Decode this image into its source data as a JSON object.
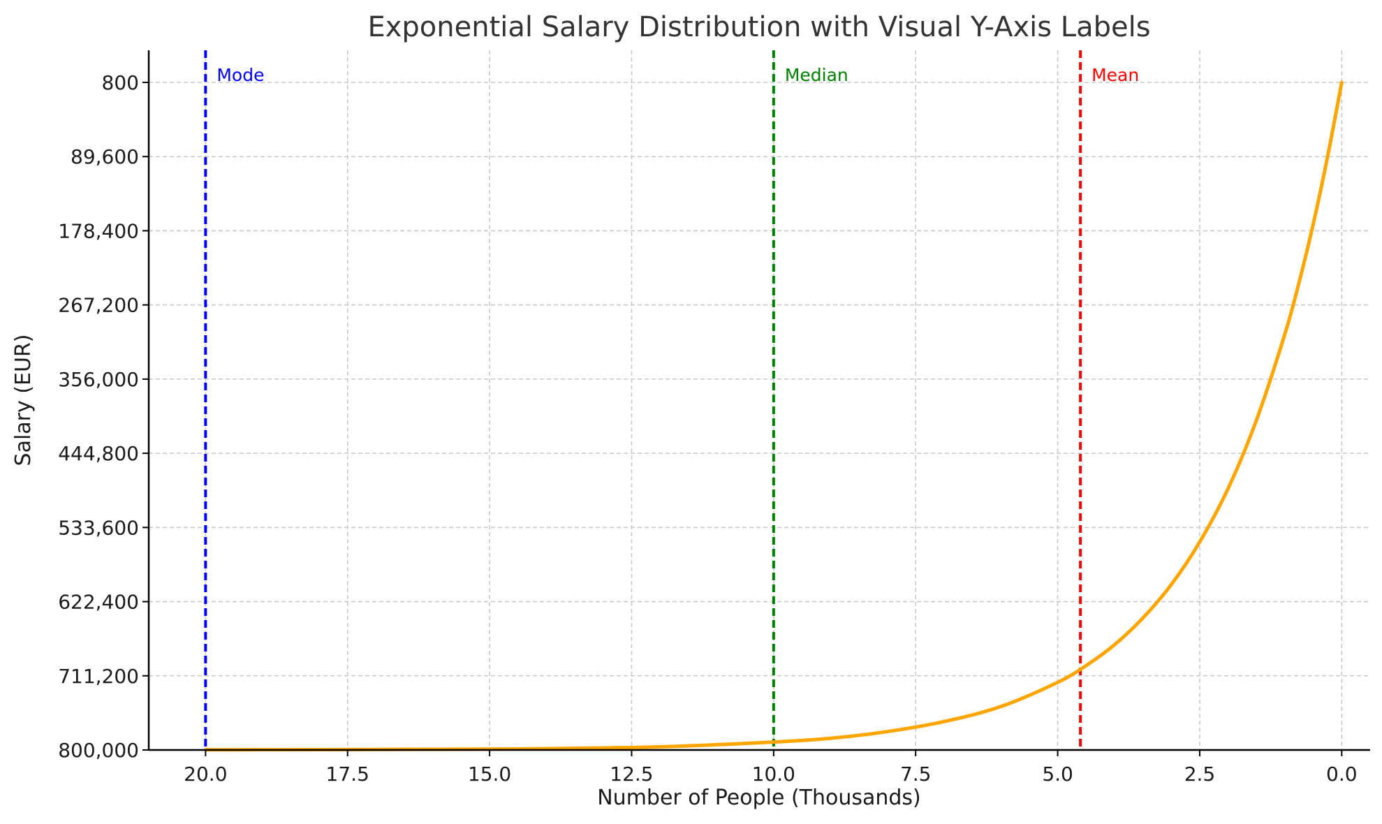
{
  "chart_data": {
    "type": "line",
    "title": "Exponential Salary Distribution with Visual Y-Axis Labels",
    "xlabel": "Number of People (Thousands)",
    "ylabel": "Salary (EUR)",
    "xlim": [
      21,
      -0.5
    ],
    "x_inverted": true,
    "ylim": [
      800,
      800000
    ],
    "y_inverted": true,
    "x_ticks": [
      20.0,
      17.5,
      15.0,
      12.5,
      10.0,
      7.5,
      5.0,
      2.5,
      0.0
    ],
    "x_tick_labels": [
      "20.0",
      "17.5",
      "15.0",
      "12.5",
      "10.0",
      "7.5",
      "5.0",
      "2.5",
      "0.0"
    ],
    "y_ticks": [
      800,
      89600,
      178400,
      267200,
      356000,
      444800,
      533600,
      622400,
      711200,
      800000
    ],
    "y_tick_labels": [
      "800",
      "89,600",
      "178,400",
      "267,200",
      "356,000",
      "444,800",
      "533,600",
      "622,400",
      "711,200",
      "800,000"
    ],
    "grid": true,
    "series": [
      {
        "color": "#FFA500",
        "x": [
          0,
          0.25,
          0.5,
          0.75,
          1.0,
          1.5,
          2.0,
          2.5,
          3.0,
          3.5,
          4.0,
          4.5,
          5.0,
          6.0,
          7.0,
          8.0,
          9.0,
          10.0,
          12.0,
          14.0,
          16.0,
          18.0,
          20.0
        ],
        "y": [
          800,
          90000,
          170000,
          240000,
          302000,
          405000,
          487000,
          551000,
          602000,
          642000,
          674000,
          699000,
          719000,
          748000,
          766000,
          778000,
          786000,
          790500,
          796200,
          798400,
          799200,
          799600,
          799800
        ]
      }
    ],
    "vlines": [
      {
        "label": "Mode",
        "x": 20.0,
        "color": "#0000FF"
      },
      {
        "label": "Median",
        "x": 10.0,
        "color": "#008000"
      },
      {
        "label": "Mean",
        "x": 4.6,
        "color": "#FF0000"
      }
    ]
  }
}
